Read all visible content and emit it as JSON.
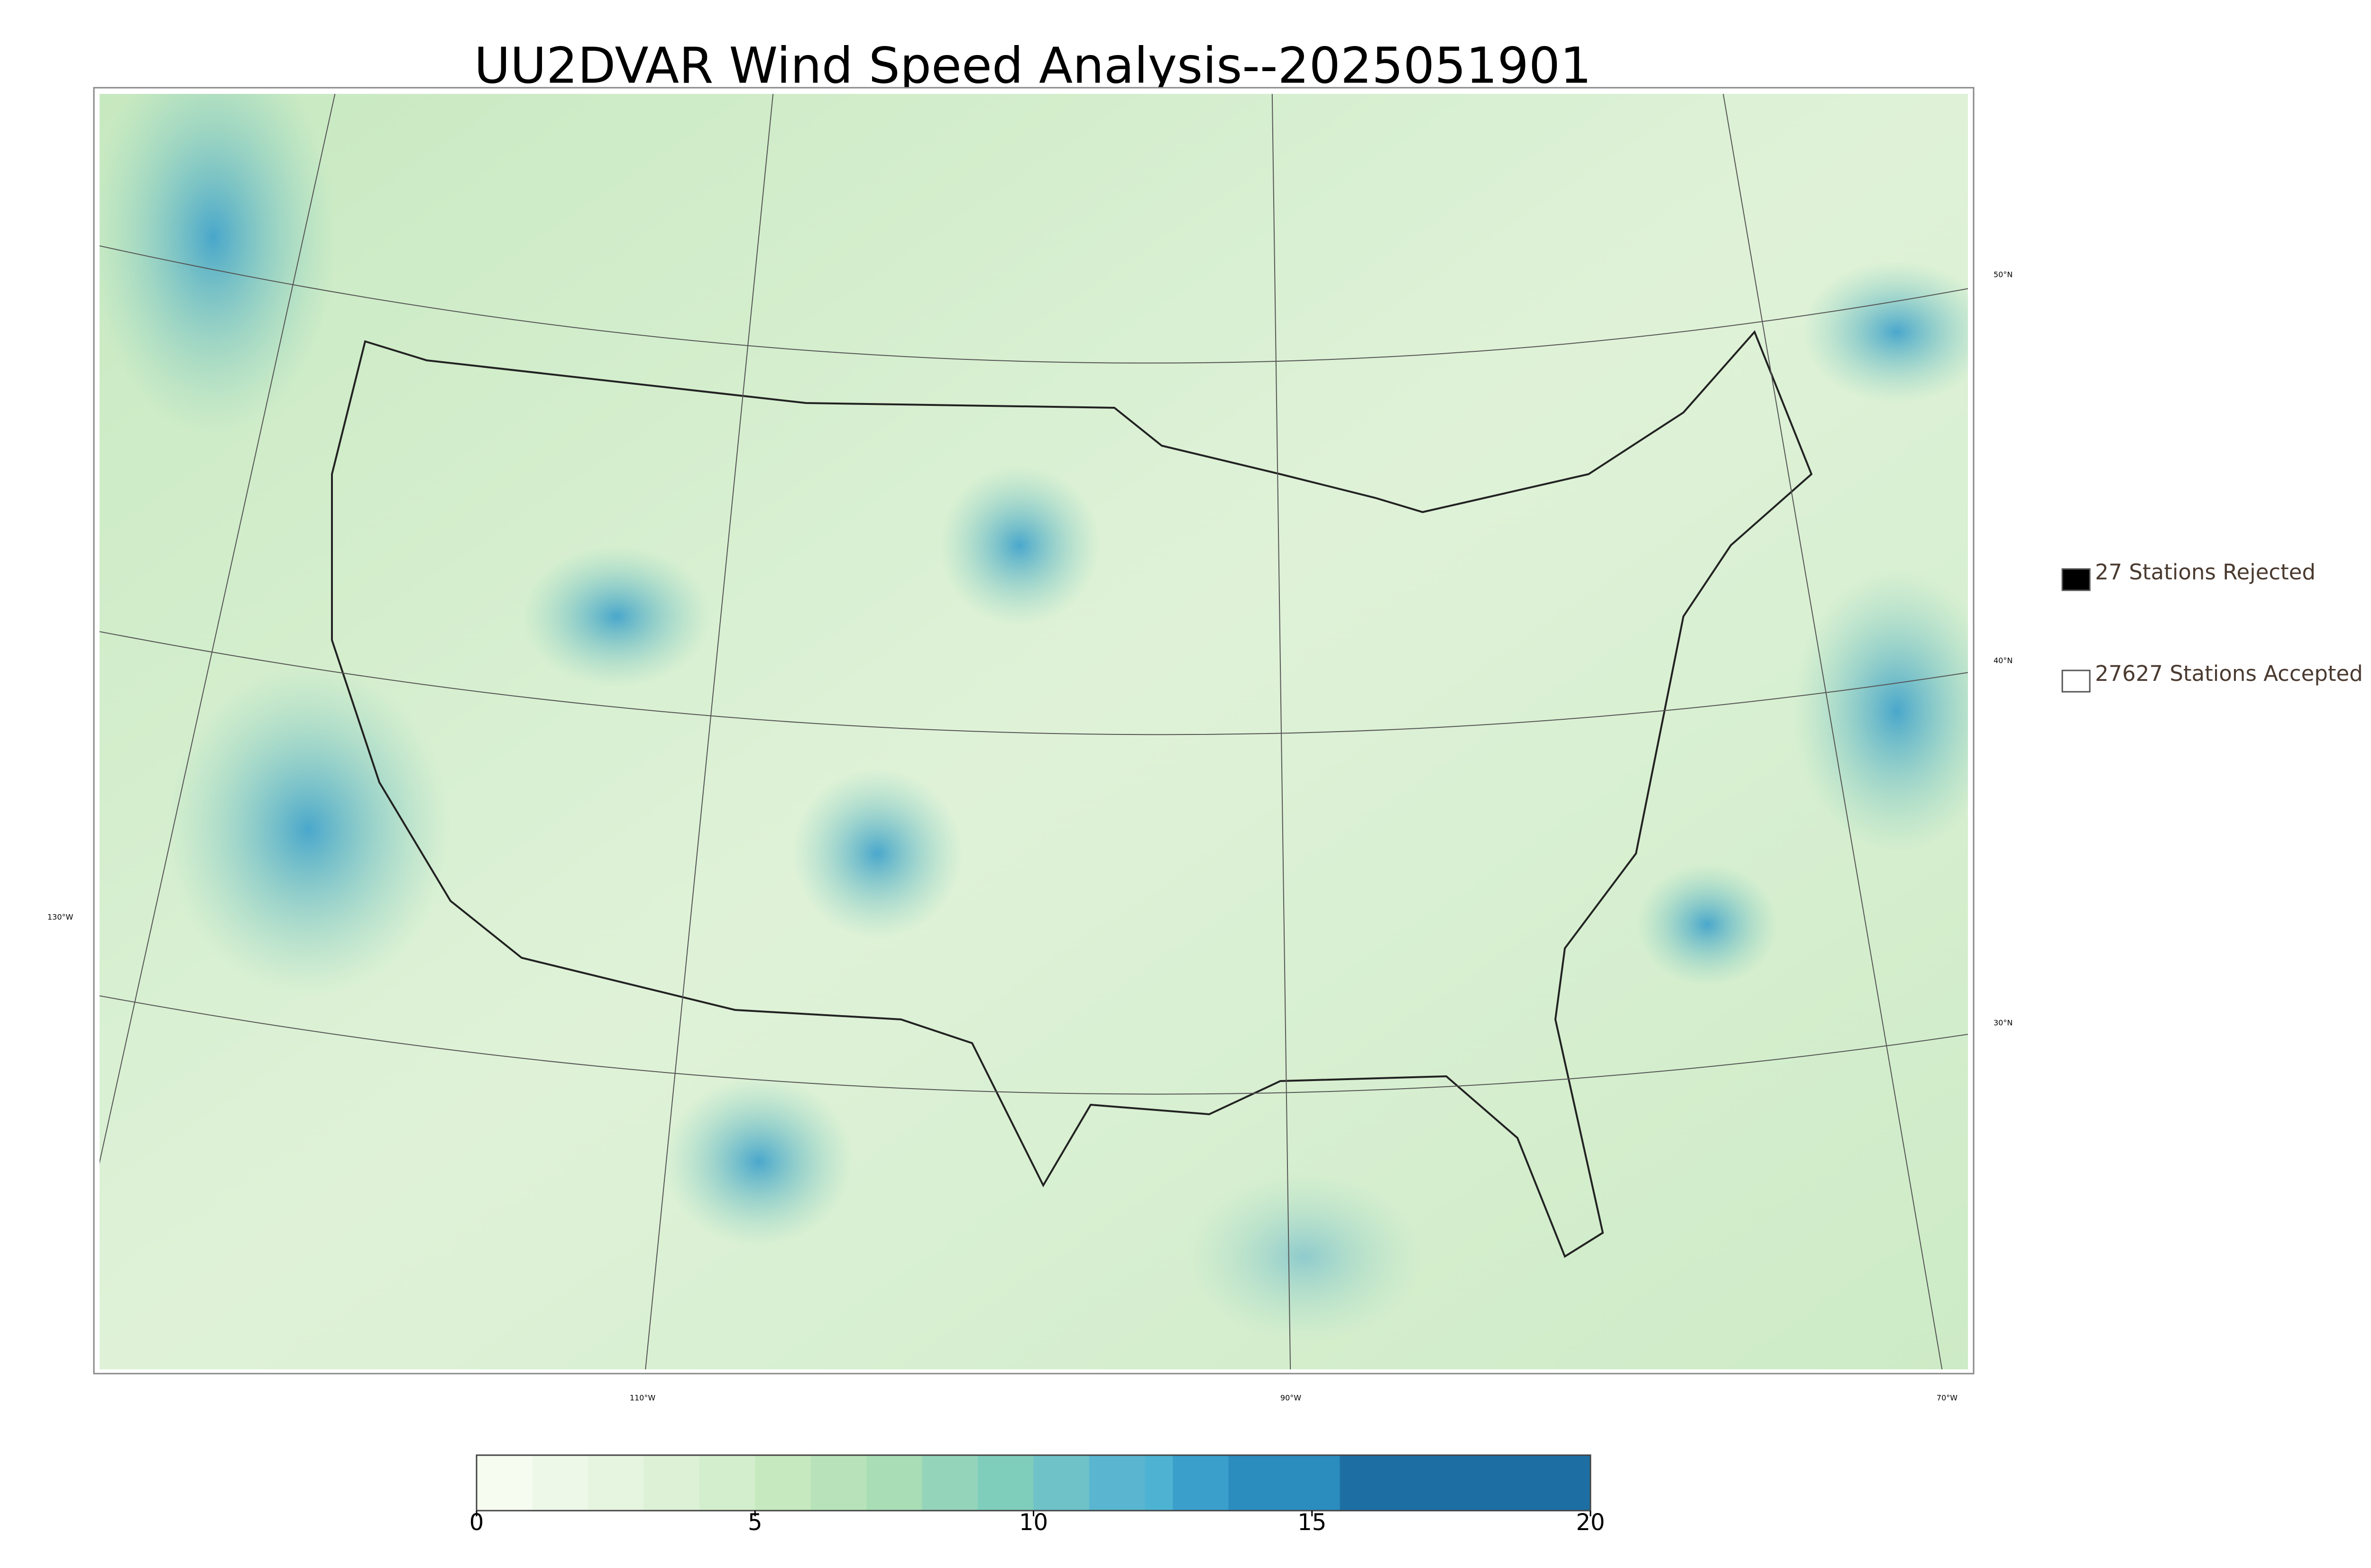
{
  "title": "UU2DVAR Wind Speed Analysis--2025051901",
  "graticule": {
    "lat_labels": [
      "50°N",
      "40°N",
      "30°N"
    ],
    "lon_labels": [
      "130°W",
      "110°W",
      "90°W",
      "70°W"
    ]
  },
  "legend": [
    {
      "label": "27 Stations Rejected",
      "color": "#000000"
    },
    {
      "label": "27627 Stations Accepted",
      "color": "#ffffff"
    }
  ],
  "colorbar": {
    "xlim": [
      0,
      20
    ],
    "xticks": [
      0,
      5,
      10,
      15,
      20
    ],
    "levels": [
      0,
      1,
      2,
      3,
      4,
      5,
      6,
      7,
      8,
      9,
      10,
      11,
      12,
      12.5,
      13.5,
      15.5,
      20
    ],
    "colors": [
      "#f7fcf0",
      "#eef8e8",
      "#e5f5e0",
      "#dcf1d6",
      "#d3eecd",
      "#c7e9c0",
      "#b8e3ba",
      "#a8ddb5",
      "#94d4bb",
      "#7fcdbb",
      "#6fc3c8",
      "#5ab6d0",
      "#4eb3d3",
      "#3a9fcb",
      "#2b8cbe",
      "#1d6fa3"
    ]
  }
}
